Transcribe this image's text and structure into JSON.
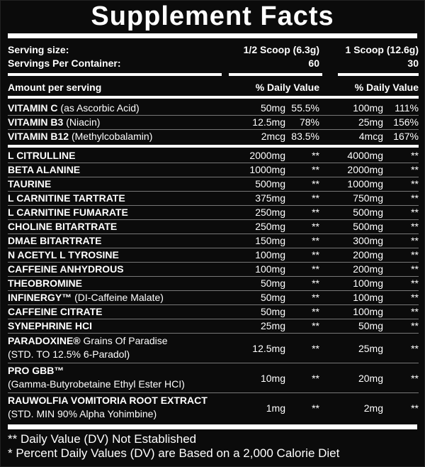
{
  "title": "Supplement Facts",
  "serving": {
    "size_label": "Serving size:",
    "size_half": "1/2 Scoop (6.3g)",
    "size_full": "1 Scoop (12.6g)",
    "servings_label": "Servings Per Container:",
    "servings_half": "60",
    "servings_full": "30"
  },
  "header": {
    "amount": "Amount per serving",
    "dv_half": "% Daily Value",
    "dv_full": "% Daily Value"
  },
  "vitamins": [
    {
      "name": "VITAMIN C",
      "sub": "(as Ascorbic Acid)",
      "amt1": "50mg",
      "dv1": "55.5%",
      "amt2": "100mg",
      "dv2": "111%"
    },
    {
      "name": "VITAMIN B3",
      "sub": "(Niacin)",
      "amt1": "12.5mg",
      "dv1": "78%",
      "amt2": "25mg",
      "dv2": "156%"
    },
    {
      "name": "VITAMIN B12",
      "sub": "(Methylcobalamin)",
      "amt1": "2mcg",
      "dv1": "83.5%",
      "amt2": "4mcg",
      "dv2": "167%"
    }
  ],
  "ingredients": [
    {
      "name": "L CITRULLINE",
      "sub": "",
      "amt1": "2000mg",
      "dv1": "**",
      "amt2": "4000mg",
      "dv2": "**"
    },
    {
      "name": "BETA ALANINE",
      "sub": "",
      "amt1": "1000mg",
      "dv1": "**",
      "amt2": "2000mg",
      "dv2": "**"
    },
    {
      "name": "TAURINE",
      "sub": "",
      "amt1": "500mg",
      "dv1": "**",
      "amt2": "1000mg",
      "dv2": "**"
    },
    {
      "name": "L CARNITINE TARTRATE",
      "sub": "",
      "amt1": "375mg",
      "dv1": "**",
      "amt2": "750mg",
      "dv2": "**"
    },
    {
      "name": "L CARNITINE FUMARATE",
      "sub": "",
      "amt1": "250mg",
      "dv1": "**",
      "amt2": "500mg",
      "dv2": "**"
    },
    {
      "name": "CHOLINE BITARTRATE",
      "sub": "",
      "amt1": "250mg",
      "dv1": "**",
      "amt2": "500mg",
      "dv2": "**"
    },
    {
      "name": "DMAE BITARTRATE",
      "sub": "",
      "amt1": "150mg",
      "dv1": "**",
      "amt2": "300mg",
      "dv2": "**"
    },
    {
      "name": "N ACETYL L TYROSINE",
      "sub": "",
      "amt1": "100mg",
      "dv1": "**",
      "amt2": "200mg",
      "dv2": "**"
    },
    {
      "name": "CAFFEINE ANHYDROUS",
      "sub": "",
      "amt1": "100mg",
      "dv1": "**",
      "amt2": "200mg",
      "dv2": "**"
    },
    {
      "name": "THEOBROMINE",
      "sub": "",
      "amt1": "50mg",
      "dv1": "**",
      "amt2": "100mg",
      "dv2": "**"
    },
    {
      "name": "INFINERGY™",
      "sub": "(DI-Caffeine Malate)",
      "amt1": "50mg",
      "dv1": "**",
      "amt2": "100mg",
      "dv2": "**"
    },
    {
      "name": "CAFFEINE CITRATE",
      "sub": "",
      "amt1": "50mg",
      "dv1": "**",
      "amt2": "100mg",
      "dv2": "**"
    },
    {
      "name": "SYNEPHRINE HCI",
      "sub": "",
      "amt1": "25mg",
      "dv1": "**",
      "amt2": "50mg",
      "dv2": "**"
    }
  ],
  "extracts": [
    {
      "name": "PARADOXINE®",
      "sub": "Grains Of Paradise",
      "line2": "(STD. TO 12.5% 6-Paradol)",
      "amt1": "12.5mg",
      "dv1": "**",
      "amt2": "25mg",
      "dv2": "**"
    },
    {
      "name": "PRO GBB™",
      "sub": "",
      "line2": "(Gamma-Butyrobetaine Ethyl Ester HCI)",
      "amt1": "10mg",
      "dv1": "**",
      "amt2": "20mg",
      "dv2": "**"
    },
    {
      "name": "RAUWOLFIA VOMITORIA ROOT EXTRACT",
      "sub": "",
      "line2": "(STD. MIN 90% Alpha Yohimbine)",
      "amt1": "1mg",
      "dv1": "**",
      "amt2": "2mg",
      "dv2": "**"
    }
  ],
  "footnotes": [
    "** Daily Value (DV) Not Established",
    "* Percent Daily Values (DV) are Based on a 2,000 Calorie Diet"
  ]
}
